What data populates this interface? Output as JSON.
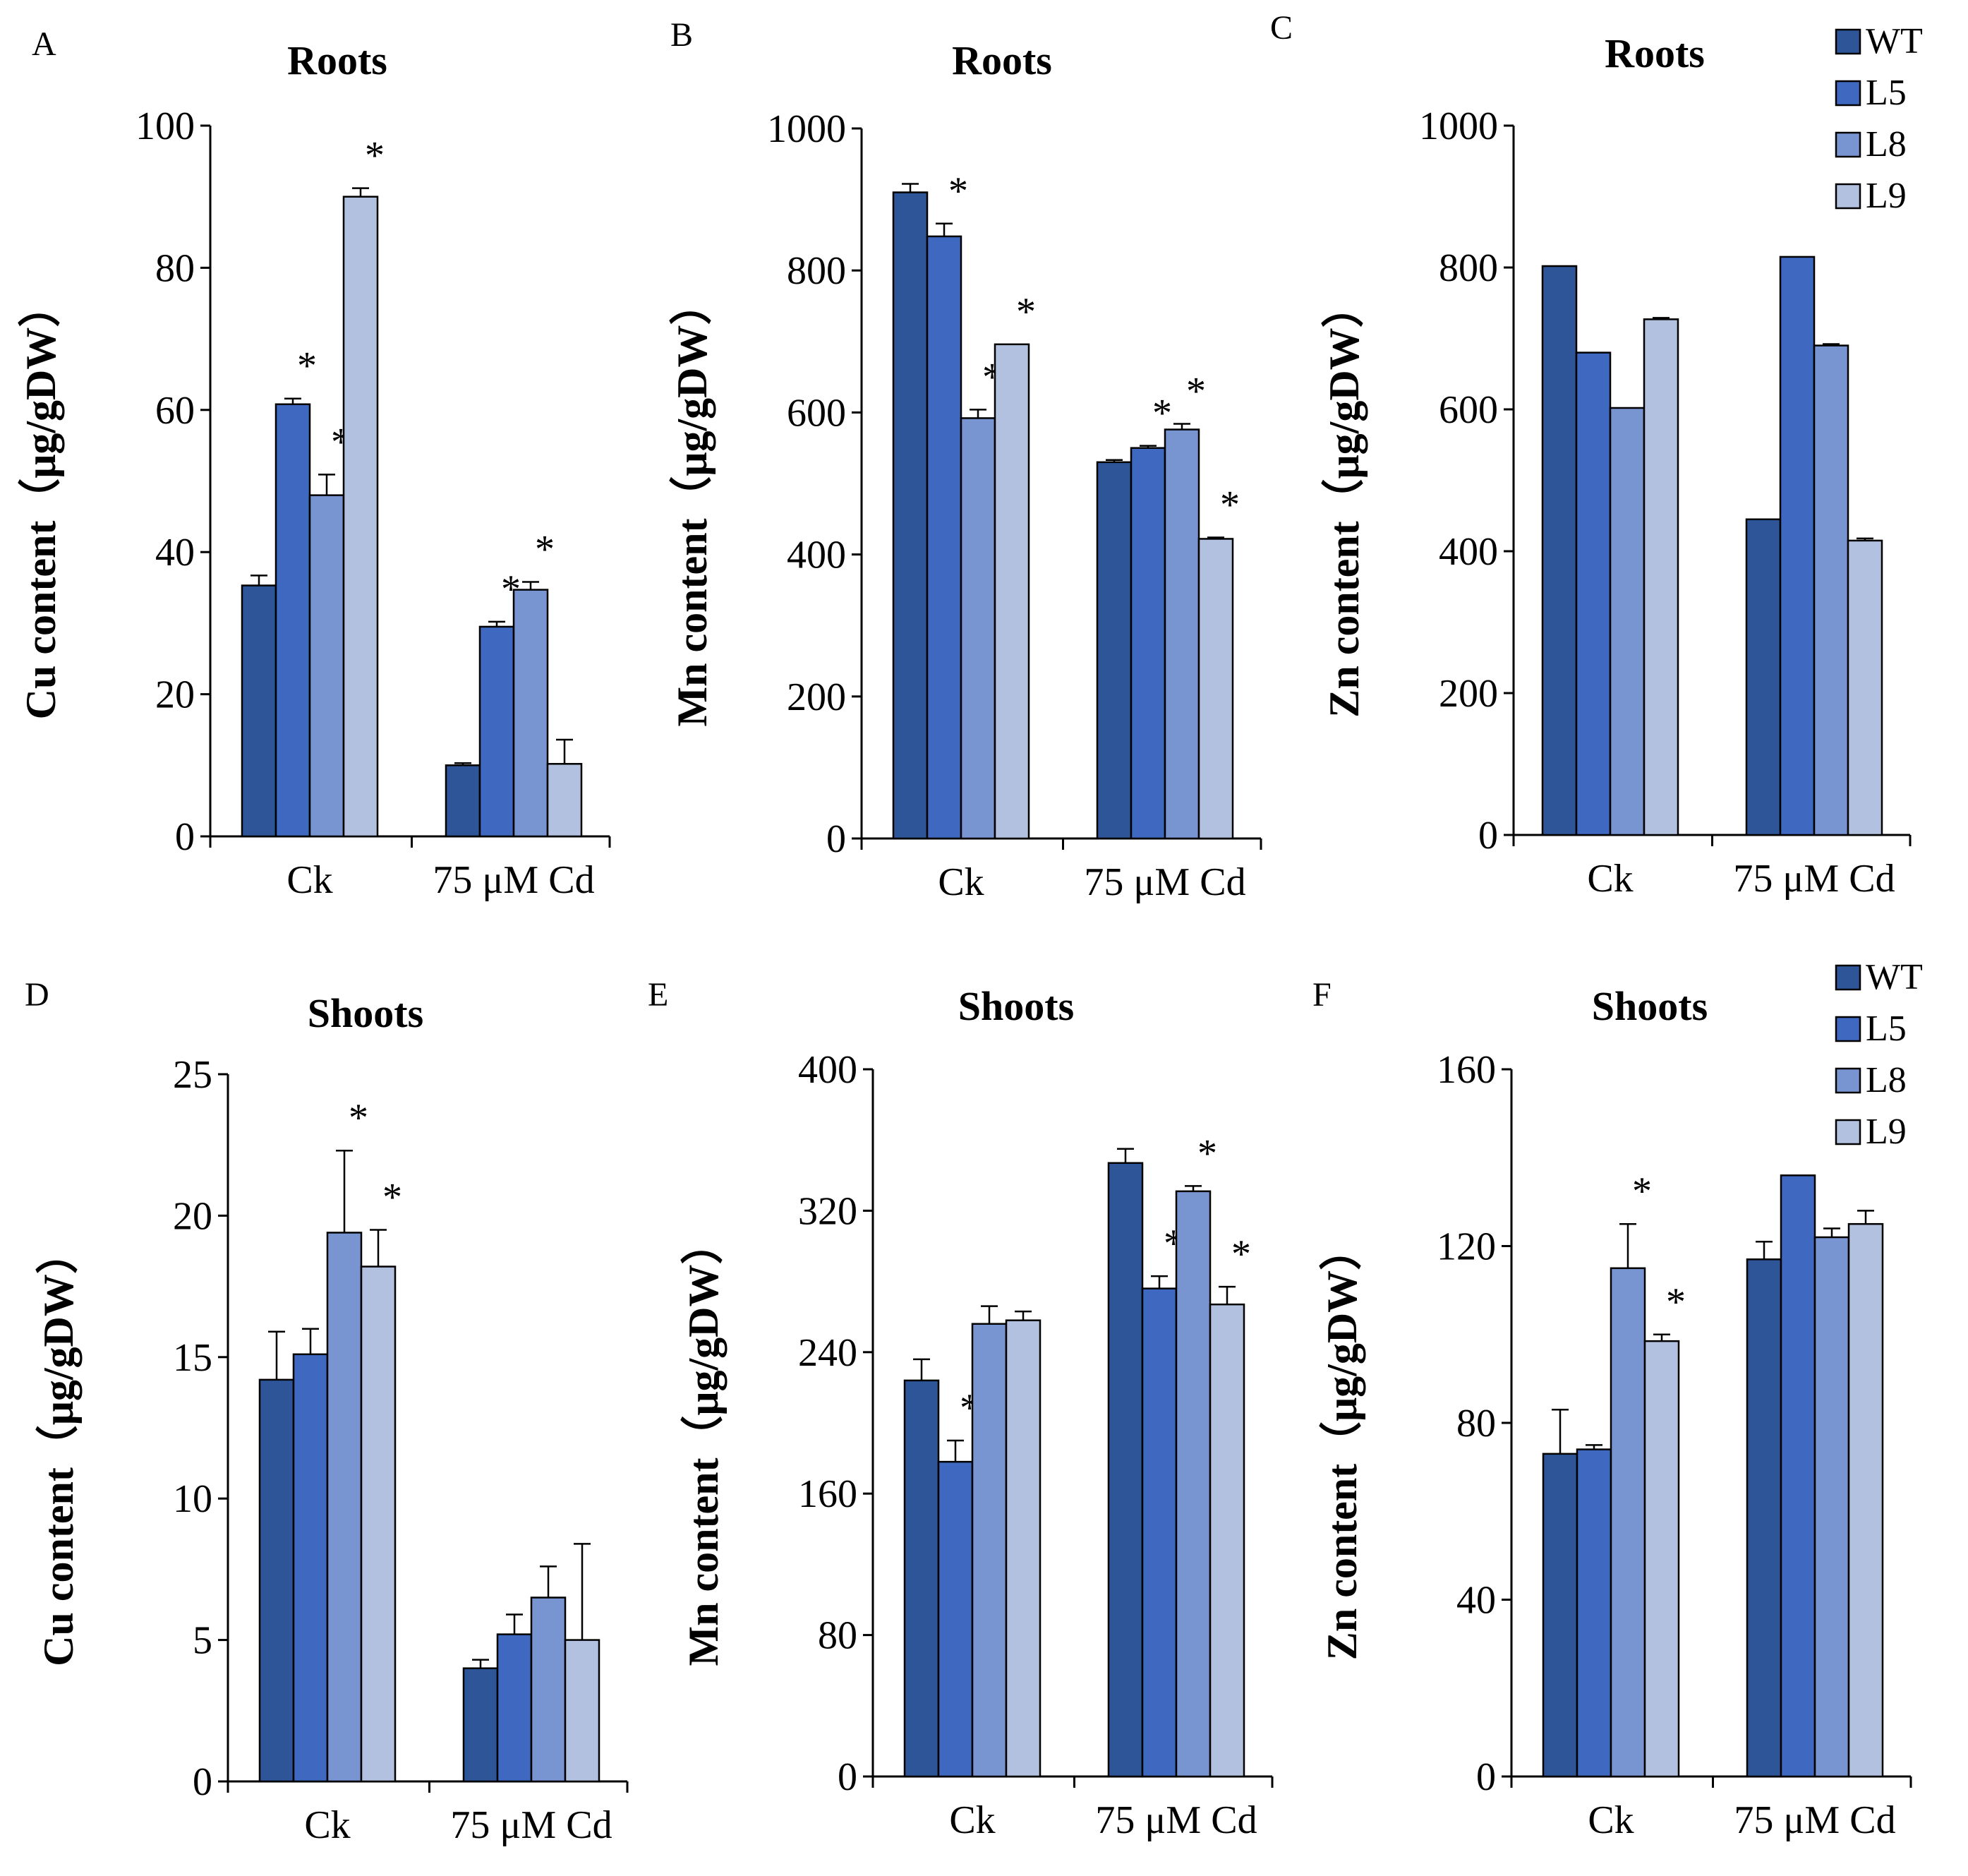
{
  "legend": [
    "WT",
    "L5",
    "L8",
    "L9"
  ],
  "colors": [
    "#2E5597",
    "#3F68C0",
    "#7894D1",
    "#B3C1E0"
  ],
  "chart_data": [
    {
      "type": "bar",
      "panel": "A",
      "title": "Roots",
      "ylabel": "Cu content（μg/gDW）",
      "xlabel": "",
      "categories": [
        "Ck",
        "75 μM Cd"
      ],
      "ylim": [
        0,
        100
      ],
      "yticks": [
        0,
        20,
        40,
        60,
        80,
        100
      ],
      "series": [
        {
          "name": "WT",
          "values": [
            35.3,
            10.0
          ],
          "errors": [
            1.4,
            0.3
          ],
          "sig": [
            "",
            ""
          ]
        },
        {
          "name": "L5",
          "values": [
            60.8,
            29.5
          ],
          "errors": [
            0.8,
            0.7
          ],
          "sig": [
            "*",
            "*"
          ]
        },
        {
          "name": "L8",
          "values": [
            48.0,
            34.7
          ],
          "errors": [
            2.9,
            1.1
          ],
          "sig": [
            "*",
            "*"
          ]
        },
        {
          "name": "L9",
          "values": [
            90.0,
            10.2
          ],
          "errors": [
            1.2,
            3.4
          ],
          "sig": [
            "*",
            ""
          ]
        }
      ]
    },
    {
      "type": "bar",
      "panel": "B",
      "title": "Roots",
      "ylabel": "Mn content（μg/gDW）",
      "xlabel": "",
      "categories": [
        "Ck",
        "75 μM Cd"
      ],
      "ylim": [
        0,
        1000
      ],
      "yticks": [
        0,
        200,
        400,
        600,
        800,
        1000
      ],
      "series": [
        {
          "name": "WT",
          "values": [
            910,
            530
          ],
          "errors": [
            12,
            3
          ],
          "sig": [
            "",
            ""
          ]
        },
        {
          "name": "L5",
          "values": [
            848,
            550
          ],
          "errors": [
            18,
            3
          ],
          "sig": [
            "*",
            "*"
          ]
        },
        {
          "name": "L8",
          "values": [
            592,
            576
          ],
          "errors": [
            12,
            8
          ],
          "sig": [
            "*",
            "*"
          ]
        },
        {
          "name": "L9",
          "values": [
            696,
            422
          ],
          "errors": [
            0,
            2
          ],
          "sig": [
            "*",
            "*"
          ]
        }
      ]
    },
    {
      "type": "bar",
      "panel": "C",
      "title": "Roots",
      "ylabel": "Zn content（μg/gDW）",
      "xlabel": "",
      "categories": [
        "Ck",
        "75 μM Cd"
      ],
      "ylim": [
        0,
        1000
      ],
      "yticks": [
        0,
        200,
        400,
        600,
        800,
        1000
      ],
      "series": [
        {
          "name": "WT",
          "values": [
            802,
            445
          ],
          "errors": [
            0,
            0
          ],
          "sig": [
            "",
            ""
          ]
        },
        {
          "name": "L5",
          "values": [
            680,
            815
          ],
          "errors": [
            0,
            0
          ],
          "sig": [
            "",
            ""
          ]
        },
        {
          "name": "L8",
          "values": [
            602,
            690
          ],
          "errors": [
            0,
            2
          ],
          "sig": [
            "",
            ""
          ]
        },
        {
          "name": "L9",
          "values": [
            727,
            415
          ],
          "errors": [
            2,
            3
          ],
          "sig": [
            "",
            ""
          ]
        }
      ]
    },
    {
      "type": "bar",
      "panel": "D",
      "title": "Shoots",
      "ylabel": "Cu content（μg/gDW）",
      "xlabel": "",
      "categories": [
        "Ck",
        "75 μM Cd"
      ],
      "ylim": [
        0,
        25
      ],
      "yticks": [
        0,
        5,
        10,
        15,
        20,
        25
      ],
      "series": [
        {
          "name": "WT",
          "values": [
            14.2,
            4.0
          ],
          "errors": [
            1.7,
            0.3
          ],
          "sig": [
            "",
            ""
          ]
        },
        {
          "name": "L5",
          "values": [
            15.1,
            5.2
          ],
          "errors": [
            0.9,
            0.7
          ],
          "sig": [
            "",
            ""
          ]
        },
        {
          "name": "L8",
          "values": [
            19.4,
            6.5
          ],
          "errors": [
            2.9,
            1.1
          ],
          "sig": [
            "*",
            ""
          ]
        },
        {
          "name": "L9",
          "values": [
            18.2,
            5.0
          ],
          "errors": [
            1.3,
            3.4
          ],
          "sig": [
            "*",
            ""
          ]
        }
      ]
    },
    {
      "type": "bar",
      "panel": "E",
      "title": "Shoots",
      "ylabel": "Mn content（μg/gDW）",
      "xlabel": "",
      "categories": [
        "Ck",
        "75 μM Cd"
      ],
      "ylim": [
        0,
        400
      ],
      "yticks": [
        0,
        80,
        160,
        240,
        320,
        400
      ],
      "series": [
        {
          "name": "WT",
          "values": [
            224,
            347
          ],
          "errors": [
            12,
            8
          ],
          "sig": [
            "",
            ""
          ]
        },
        {
          "name": "L5",
          "values": [
            178,
            276
          ],
          "errors": [
            12,
            7
          ],
          "sig": [
            "*",
            "*"
          ]
        },
        {
          "name": "L8",
          "values": [
            256,
            331
          ],
          "errors": [
            10,
            3
          ],
          "sig": [
            "",
            "*"
          ]
        },
        {
          "name": "L9",
          "values": [
            258,
            267
          ],
          "errors": [
            5,
            10
          ],
          "sig": [
            "",
            "*"
          ]
        }
      ]
    },
    {
      "type": "bar",
      "panel": "F",
      "title": "Shoots",
      "ylabel": "Zn content（μg/gDW）",
      "xlabel": "",
      "categories": [
        "Ck",
        "75 μM Cd"
      ],
      "ylim": [
        0,
        160
      ],
      "yticks": [
        0,
        40,
        80,
        120,
        160
      ],
      "series": [
        {
          "name": "WT",
          "values": [
            73,
            117
          ],
          "errors": [
            10,
            4
          ],
          "sig": [
            "",
            ""
          ]
        },
        {
          "name": "L5",
          "values": [
            74,
            136
          ],
          "errors": [
            1,
            0
          ],
          "sig": [
            "",
            ""
          ]
        },
        {
          "name": "L8",
          "values": [
            115,
            122
          ],
          "errors": [
            10,
            2
          ],
          "sig": [
            "*",
            ""
          ]
        },
        {
          "name": "L9",
          "values": [
            98.5,
            125
          ],
          "errors": [
            1.5,
            3
          ],
          "sig": [
            "*",
            ""
          ]
        }
      ]
    }
  ]
}
